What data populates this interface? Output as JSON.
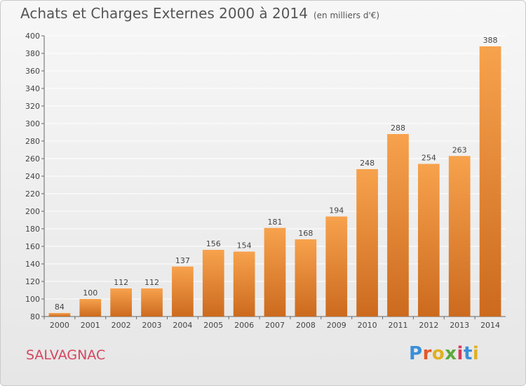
{
  "header": {
    "title": "Achats et Charges Externes 2000 à 2014",
    "unit": "(en milliers d'€)"
  },
  "footer": {
    "commune": "SALVAGNAC",
    "brand": "Proxiti",
    "brand_colors": [
      "#3a8fd8",
      "#e05a2a",
      "#e0b020",
      "#5aaa3a",
      "#d63a5a",
      "#3a8fd8",
      "#e0b020"
    ]
  },
  "colors": {
    "bar_light": "#f7a24d",
    "bar_dark": "#cc6a1e",
    "label": "#444444",
    "grid": "#ffffff"
  },
  "chart_data": {
    "type": "bar",
    "categories": [
      "2000",
      "2001",
      "2002",
      "2003",
      "2004",
      "2005",
      "2006",
      "2007",
      "2008",
      "2009",
      "2010",
      "2011",
      "2012",
      "2013",
      "2014"
    ],
    "values": [
      84,
      100,
      112,
      112,
      137,
      156,
      154,
      181,
      168,
      194,
      248,
      288,
      254,
      263,
      388
    ],
    "title": "Achats et Charges Externes 2000 à 2014",
    "xlabel": "",
    "ylabel": "",
    "ylim": [
      80,
      400
    ],
    "yticks": [
      80,
      100,
      120,
      140,
      160,
      180,
      200,
      220,
      240,
      260,
      280,
      300,
      320,
      340,
      360,
      380,
      400
    ],
    "grid": true,
    "data_labels": true
  }
}
